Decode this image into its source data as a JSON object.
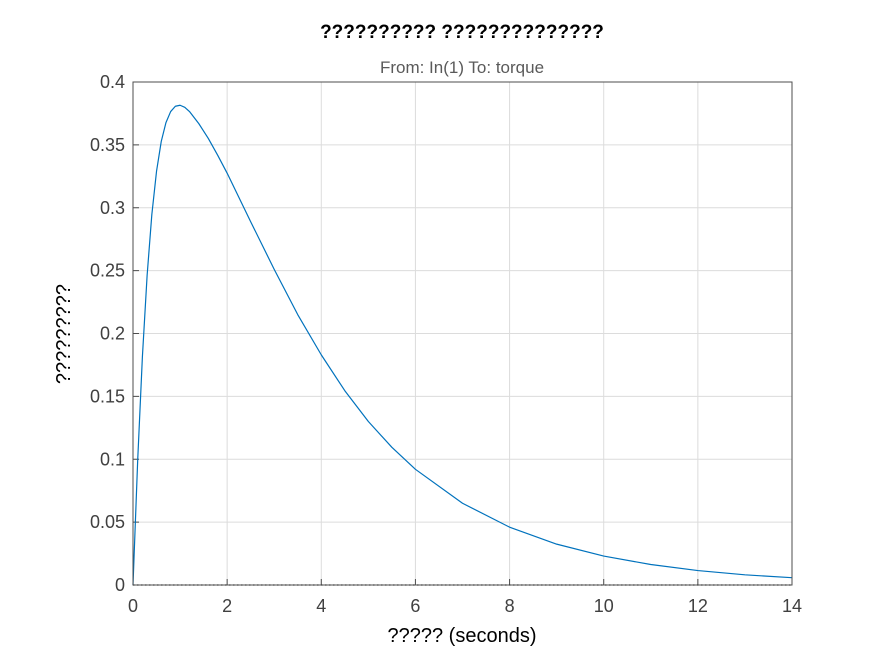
{
  "chart_data": {
    "type": "line",
    "title": "?????????? ??????????????",
    "subtitle": "From: In(1)  To: torque",
    "xlabel": "????? (seconds)",
    "ylabel": "?????????",
    "xlim": [
      0,
      14
    ],
    "ylim": [
      0,
      0.4
    ],
    "xticks": [
      "0",
      "2",
      "4",
      "6",
      "8",
      "10",
      "12",
      "14"
    ],
    "yticks": [
      "0",
      "0.05",
      "0.1",
      "0.15",
      "0.2",
      "0.25",
      "0.3",
      "0.35",
      "0.4"
    ],
    "grid": true,
    "line_color": "#0072bd",
    "reference_line": {
      "y": 0,
      "style": "dotted",
      "color": "#000000"
    },
    "series": [
      {
        "x": [
          0,
          0.1,
          0.2,
          0.3,
          0.4,
          0.5,
          0.6,
          0.7,
          0.8,
          0.9,
          1.0,
          1.1,
          1.2,
          1.4,
          1.6,
          1.8,
          2.0,
          2.5,
          3.0,
          3.5,
          4.0,
          4.5,
          5.0,
          5.5,
          6.0,
          7.0,
          8.0,
          9.0,
          10.0,
          11.0,
          12.0,
          13.0,
          14.0
        ],
        "y": [
          0,
          0.0995,
          0.1817,
          0.2462,
          0.2946,
          0.3291,
          0.3527,
          0.3677,
          0.3765,
          0.3807,
          0.3815,
          0.3799,
          0.3765,
          0.3668,
          0.3551,
          0.3417,
          0.3275,
          0.2889,
          0.251,
          0.215,
          0.183,
          0.1545,
          0.13,
          0.1095,
          0.092,
          0.065,
          0.046,
          0.0325,
          0.023,
          0.0163,
          0.0115,
          0.0081,
          0.0058
        ]
      }
    ]
  }
}
